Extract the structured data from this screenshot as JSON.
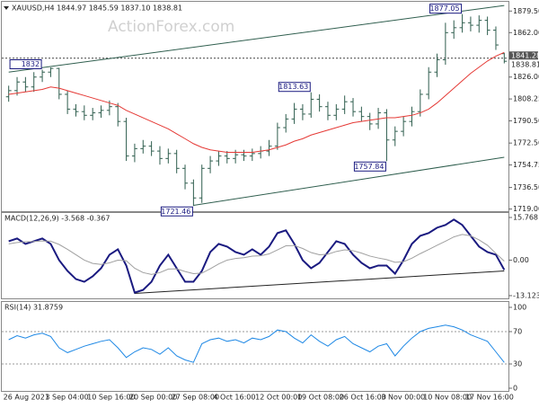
{
  "chart_data": [
    {
      "type": "candlestick",
      "title": "XAUUSD,H4 1844.97 1845.59 1837.10 1838.81",
      "watermark": "ActionForex.com",
      "categories": [
        "26 Aug 2021",
        null,
        null,
        null,
        null,
        "3 Sep 04:00",
        null,
        null,
        null,
        null,
        "10 Sep 16:00",
        null,
        null,
        null,
        null,
        "20 Sep 00:00",
        null,
        null,
        null,
        null,
        "27 Sep 08:00",
        null,
        null,
        null,
        null,
        "4 Oct 16:00",
        null,
        null,
        null,
        null,
        "12 Oct 00:00",
        null,
        null,
        null,
        null,
        "19 Oct 08:00",
        null,
        null,
        null,
        null,
        "26 Oct 16:00",
        null,
        null,
        null,
        null,
        "3 Nov 00:00",
        null,
        null,
        null,
        null,
        "10 Nov 08:00",
        null,
        null,
        null,
        null,
        "17 Nov 16:00",
        null,
        null,
        null,
        null
      ],
      "open": [
        1810,
        1815,
        1822,
        1818,
        1826,
        1830,
        1833,
        1812,
        1800,
        1798,
        1795,
        1797,
        1799,
        1802,
        1790,
        1762,
        1768,
        1770,
        1766,
        1760,
        1764,
        1752,
        1740,
        1728,
        1752,
        1758,
        1762,
        1760,
        1763,
        1762,
        1764,
        1766,
        1770,
        1785,
        1792,
        1800,
        1796,
        1808,
        1802,
        1795,
        1800,
        1806,
        1798,
        1794,
        1788,
        1797,
        1775,
        1782,
        1790,
        1798,
        1812,
        1830,
        1840,
        1862,
        1866,
        1870,
        1868,
        1872,
        1864,
        1844.97
      ],
      "high": [
        1819,
        1826,
        1826,
        1830,
        1832,
        1833.79,
        1833.5,
        1815,
        1804,
        1803,
        1801,
        1803,
        1807,
        1805,
        1793,
        1772,
        1775,
        1774,
        1770,
        1768,
        1767,
        1755,
        1743,
        1755,
        1762,
        1766,
        1766,
        1767,
        1767,
        1768,
        1770,
        1775,
        1789,
        1796,
        1805,
        1804,
        1813.63,
        1812,
        1806,
        1804,
        1811,
        1809,
        1802,
        1797,
        1801,
        1800,
        1786,
        1794,
        1802,
        1816,
        1834,
        1845,
        1870,
        1872,
        1877.05,
        1875,
        1876,
        1875,
        1867,
        1845.59
      ],
      "low": [
        1806,
        1811,
        1814,
        1814,
        1822,
        1826,
        1808,
        1796,
        1794,
        1791,
        1791,
        1793,
        1795,
        1786,
        1758,
        1757,
        1764,
        1762,
        1755,
        1756,
        1748,
        1735,
        1721.46,
        1724,
        1748,
        1754,
        1756,
        1756,
        1758,
        1758,
        1760,
        1762,
        1767,
        1781,
        1788,
        1791,
        1793,
        1798,
        1791,
        1791,
        1796,
        1794,
        1790,
        1783,
        1784,
        1757.84,
        1770,
        1778,
        1786,
        1794,
        1808,
        1826,
        1836,
        1857,
        1862,
        1863,
        1862,
        1860,
        1848,
        1837.1
      ],
      "close": [
        1815,
        1822,
        1818,
        1826,
        1830,
        1833,
        1812,
        1800,
        1798,
        1795,
        1797,
        1799,
        1802,
        1790,
        1762,
        1768,
        1770,
        1766,
        1760,
        1764,
        1752,
        1740,
        1728,
        1752,
        1758,
        1762,
        1760,
        1763,
        1762,
        1764,
        1766,
        1770,
        1785,
        1792,
        1800,
        1796,
        1808,
        1802,
        1795,
        1800,
        1806,
        1798,
        1794,
        1788,
        1797,
        1775,
        1782,
        1790,
        1798,
        1812,
        1830,
        1840,
        1862,
        1866,
        1870,
        1868,
        1872,
        1864,
        1852,
        1838.81
      ],
      "color": "#2f5e4e",
      "ma": {
        "color": "#e53935",
        "values": [
          1812,
          1813,
          1814,
          1815,
          1816,
          1818,
          1817,
          1815,
          1813,
          1811,
          1809,
          1807,
          1805,
          1803,
          1799,
          1796,
          1793,
          1790,
          1787,
          1784,
          1780,
          1776,
          1772,
          1769,
          1767,
          1766,
          1765,
          1765,
          1765,
          1765,
          1766,
          1767,
          1769,
          1771,
          1774,
          1776,
          1779,
          1781,
          1783,
          1785,
          1787,
          1789,
          1790,
          1791,
          1792,
          1793,
          1793,
          1794,
          1795,
          1797,
          1800,
          1805,
          1811,
          1817,
          1823,
          1829,
          1834,
          1839,
          1843,
          1846
        ]
      },
      "ylim": [
        1718,
        1887
      ],
      "yticks": [
        {
          "value": 1879.5,
          "label": "1879.50"
        },
        {
          "value": 1862,
          "label": "1862.00"
        },
        {
          "value": 1826,
          "label": "1826.00"
        },
        1808.25,
        {
          "value": 1790.5,
          "label": "1790.50"
        },
        {
          "value": 1772.5,
          "label": "1772.50"
        },
        1754.75,
        {
          "value": 1736.5,
          "label": "1736.50"
        },
        {
          "value": 1719,
          "label": "1719.00"
        }
      ],
      "price_markers": [
        1841.28,
        1838.81
      ],
      "trendlines": [
        {
          "from": [
            0,
            1830
          ],
          "to": [
            59,
            1884
          ]
        },
        {
          "from": [
            22,
            1722
          ],
          "to": [
            59,
            1761
          ]
        }
      ]
    },
    {
      "type": "macd",
      "title": "MACD(12,26,9) -3.568 -0.367",
      "series": [
        {
          "color": "#1a1a80",
          "values": [
            7,
            8,
            6,
            7,
            8,
            6,
            0,
            -4,
            -7,
            -8,
            -6,
            -3,
            2,
            4,
            -2,
            -12,
            -11,
            -8,
            -2,
            2,
            -3,
            -8,
            -8,
            -4,
            3,
            6,
            5,
            3,
            2,
            4,
            2,
            5,
            10,
            11,
            6,
            0,
            -3,
            -1,
            3,
            7,
            6,
            2,
            -1,
            -3,
            -2,
            -2,
            -5,
            0,
            6,
            9,
            10,
            12,
            13,
            15,
            13,
            9,
            5,
            3,
            2,
            -3.568
          ]
        },
        {
          "color": "#a0a0a0",
          "values": [
            6,
            6.5,
            6.8,
            6.9,
            7.1,
            7,
            5.8,
            4,
            2,
            0,
            -1.2,
            -1.6,
            -1,
            0,
            -0.2,
            -3,
            -4.6,
            -5.3,
            -4.6,
            -3.3,
            -3.2,
            -4.2,
            -5,
            -4.8,
            -3.2,
            -1.4,
            0,
            0.6,
            0.9,
            1.5,
            1.6,
            2.3,
            3.8,
            5.3,
            5.4,
            4.3,
            2.8,
            2,
            2.2,
            3.2,
            3.8,
            3.5,
            2.6,
            1.5,
            0.8,
            0.2,
            -0.8,
            -0.6,
            0.7,
            2.4,
            3.9,
            5.5,
            7,
            8.6,
            9.5,
            9,
            7.5,
            5.5,
            2.5,
            -0.367
          ]
        }
      ],
      "ylim": [
        -13.8,
        17.1
      ],
      "yticks": [
        15.768,
        {
          "value": 0,
          "label": "0.00"
        },
        -13.123
      ],
      "trendlines": [
        {
          "from": [
            15,
            -12.3
          ],
          "to": [
            59,
            -4
          ]
        }
      ]
    },
    {
      "type": "rsi",
      "title": "RSI(14) 31.8759",
      "color": "#1e88e5",
      "values": [
        60,
        65,
        62,
        66,
        68,
        64,
        50,
        44,
        48,
        52,
        55,
        58,
        60,
        50,
        38,
        45,
        50,
        48,
        42,
        50,
        40,
        35,
        32,
        55,
        60,
        62,
        58,
        60,
        56,
        62,
        60,
        64,
        72,
        70,
        62,
        56,
        66,
        58,
        52,
        60,
        64,
        55,
        50,
        45,
        52,
        55,
        40,
        52,
        62,
        70,
        74,
        76,
        78,
        76,
        72,
        66,
        62,
        58,
        45,
        31.8759
      ],
      "ylim": [
        0,
        100
      ],
      "yticks": [
        0,
        30,
        70,
        100
      ],
      "levels": [
        30,
        70
      ]
    }
  ]
}
